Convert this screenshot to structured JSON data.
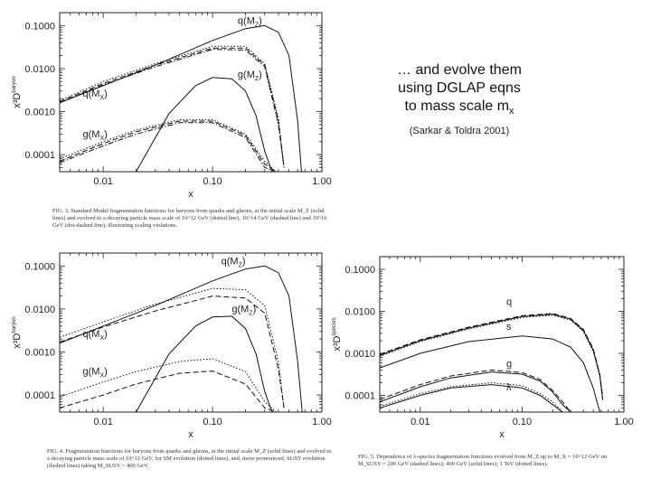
{
  "slide": {
    "lines": [
      "… and evolve them",
      "using DGLAP eqns",
      "to mass scale m"
    ],
    "subscript": "x",
    "reference": "(Sarkar & Toldra 2001)"
  },
  "captions": {
    "fig3": "FIG. 3. Standard Model fragmentation functions for baryons from quarks and gluons, at the initial scale M_Z (solid lines) and evolved to a decaying particle mass scale of 10^12 GeV (dotted line), 10^14 GeV (dashed line) and 10^16 GeV (dot-dashed line), illustrating scaling violations.",
    "fig4": "FIG. 4. Fragmentation functions for baryons from quarks and gluons, at the initial scale M_Z (solid lines) and evolved to a decaying particle mass scale of 10^12 GeV, for SM evolution (dotted lines), and, more pronounced, SUSY evolution (dashed lines) taking M_SUSY ~ 400 GeV.",
    "fig5": "FIG. 5. Dependence of λ-species fragmentation functions evolved from M_Z up to M_X = 10^12 GeV on M_SUSY = 200 GeV (dashed lines); 400 GeV (solid lines); 1 TeV (dotted lines)."
  },
  "chart_data": [
    {
      "type": "line",
      "title": "",
      "xlabel": "x",
      "ylabel": "x³D",
      "ylabel_sup": "baryon",
      "x_scale": "log",
      "y_scale": "log",
      "xlim": [
        0.004,
        1.0
      ],
      "ylim": [
        4e-05,
        0.2
      ],
      "x_ticks": [
        {
          "v": 0.01,
          "label": "0.01"
        },
        {
          "v": 0.1,
          "label": "0.10"
        },
        {
          "v": 1.0,
          "label": "1.00"
        }
      ],
      "y_ticks": [
        {
          "v": 0.1,
          "label": "0.1000"
        },
        {
          "v": 0.01,
          "label": "0.0100"
        },
        {
          "v": 0.001,
          "label": "0.0010"
        },
        {
          "v": 0.0001,
          "label": "0.0001"
        }
      ],
      "annotations": [
        {
          "text": "q(M",
          "sub": "Z",
          "x": 0.17,
          "y": 0.11
        },
        {
          "text": "g(M",
          "sub": "Z",
          "x": 0.17,
          "y": 0.0062
        },
        {
          "text": "q(M",
          "sub": "X",
          "x": 0.0065,
          "y": 0.0022
        },
        {
          "text": "g(M",
          "sub": "X",
          "x": 0.0065,
          "y": 0.00025
        }
      ],
      "series": [
        {
          "style": "solid",
          "x": [
            0.004,
            0.01,
            0.03,
            0.1,
            0.2,
            0.3,
            0.4,
            0.5,
            0.6,
            0.65
          ],
          "y": [
            0.0016,
            0.004,
            0.012,
            0.045,
            0.085,
            0.1,
            0.07,
            0.02,
            0.0006,
            4e-05
          ]
        },
        {
          "style": "solid",
          "x": [
            0.02,
            0.04,
            0.07,
            0.1,
            0.15,
            0.2,
            0.25,
            0.3,
            0.35
          ],
          "y": [
            4e-05,
            0.0009,
            0.004,
            0.0062,
            0.0058,
            0.003,
            0.0008,
            0.00012,
            4e-05
          ]
        },
        {
          "style": "dashed",
          "x": [
            0.004,
            0.01,
            0.03,
            0.1,
            0.2,
            0.3,
            0.4,
            0.45
          ],
          "y": [
            0.0017,
            0.0045,
            0.012,
            0.03,
            0.03,
            0.012,
            0.0006,
            5e-05
          ]
        },
        {
          "style": "dotted",
          "x": [
            0.004,
            0.01,
            0.03,
            0.1,
            0.2,
            0.3,
            0.4,
            0.45
          ],
          "y": [
            0.0018,
            0.005,
            0.013,
            0.033,
            0.033,
            0.013,
            0.0007,
            5e-05
          ]
        },
        {
          "style": "dashdot",
          "x": [
            0.004,
            0.01,
            0.03,
            0.1,
            0.2,
            0.3,
            0.4,
            0.45
          ],
          "y": [
            0.0016,
            0.0042,
            0.011,
            0.028,
            0.027,
            0.011,
            0.0005,
            5e-05
          ]
        },
        {
          "style": "dashed",
          "x": [
            0.004,
            0.01,
            0.02,
            0.05,
            0.1,
            0.2,
            0.3,
            0.38
          ],
          "y": [
            7e-05,
            0.00018,
            0.00034,
            0.0006,
            0.0006,
            0.00028,
            6e-05,
            4e-05
          ]
        },
        {
          "style": "dotted",
          "x": [
            0.004,
            0.01,
            0.02,
            0.05,
            0.1,
            0.2,
            0.3,
            0.38
          ],
          "y": [
            8e-05,
            0.0002,
            0.00037,
            0.00065,
            0.00065,
            0.0003,
            7e-05,
            4e-05
          ]
        },
        {
          "style": "dashdot",
          "x": [
            0.004,
            0.01,
            0.02,
            0.05,
            0.1,
            0.2,
            0.3,
            0.38
          ],
          "y": [
            6.5e-05,
            0.00016,
            0.0003,
            0.00055,
            0.00055,
            0.00025,
            5e-05,
            4e-05
          ]
        }
      ]
    },
    {
      "type": "line",
      "title": "",
      "xlabel": "x",
      "ylabel": "x³D",
      "ylabel_sup": "baryon",
      "x_scale": "log",
      "y_scale": "log",
      "xlim": [
        0.004,
        1.0
      ],
      "ylim": [
        4e-05,
        0.2
      ],
      "x_ticks": [
        {
          "v": 0.01,
          "label": "0.01"
        },
        {
          "v": 0.1,
          "label": "0.10"
        },
        {
          "v": 1.0,
          "label": "1.00"
        }
      ],
      "y_ticks": [
        {
          "v": 0.1,
          "label": "0.1000"
        },
        {
          "v": 0.01,
          "label": "0.0100"
        },
        {
          "v": 0.001,
          "label": "0.0010"
        },
        {
          "v": 0.0001,
          "label": "0.0001"
        }
      ],
      "annotations": [
        {
          "text": "q(M",
          "sub": "Z",
          "x": 0.12,
          "y": 0.11
        },
        {
          "text": "g(M",
          "sub": "Z",
          "x": 0.15,
          "y": 0.0085
        },
        {
          "text": "q(M",
          "sub": "X",
          "x": 0.0065,
          "y": 0.0022
        },
        {
          "text": "g(M",
          "sub": "X",
          "x": 0.0065,
          "y": 0.0003
        }
      ],
      "series": [
        {
          "style": "solid",
          "x": [
            0.004,
            0.01,
            0.03,
            0.1,
            0.2,
            0.3,
            0.4,
            0.5,
            0.6,
            0.66
          ],
          "y": [
            0.0016,
            0.004,
            0.012,
            0.045,
            0.085,
            0.1,
            0.07,
            0.02,
            0.0006,
            4e-05
          ]
        },
        {
          "style": "solid",
          "x": [
            0.02,
            0.04,
            0.07,
            0.1,
            0.15,
            0.2,
            0.25,
            0.3,
            0.35
          ],
          "y": [
            4e-05,
            0.0009,
            0.004,
            0.0065,
            0.0068,
            0.0035,
            0.0009,
            0.00012,
            4e-05
          ]
        },
        {
          "style": "dotted",
          "x": [
            0.004,
            0.01,
            0.03,
            0.1,
            0.2,
            0.3,
            0.4,
            0.45
          ],
          "y": [
            0.0022,
            0.005,
            0.013,
            0.03,
            0.028,
            0.012,
            0.0006,
            5e-05
          ]
        },
        {
          "style": "dashed",
          "x": [
            0.004,
            0.01,
            0.03,
            0.1,
            0.2,
            0.3,
            0.4,
            0.45
          ],
          "y": [
            0.0017,
            0.0038,
            0.009,
            0.02,
            0.018,
            0.008,
            0.0004,
            5e-05
          ]
        },
        {
          "style": "dotted",
          "x": [
            0.004,
            0.01,
            0.02,
            0.05,
            0.1,
            0.2,
            0.3,
            0.38
          ],
          "y": [
            9e-05,
            0.0002,
            0.00035,
            0.0006,
            0.0007,
            0.00035,
            7e-05,
            4e-05
          ]
        },
        {
          "style": "dashed",
          "x": [
            0.004,
            0.01,
            0.02,
            0.05,
            0.1,
            0.2,
            0.3,
            0.38
          ],
          "y": [
            5e-05,
            0.0001,
            0.00018,
            0.00032,
            0.00036,
            0.00018,
            5e-05,
            4e-05
          ]
        }
      ]
    },
    {
      "type": "line",
      "title": "",
      "xlabel": "x",
      "ylabel": "x³D",
      "ylabel_sup": "species",
      "x_scale": "log",
      "y_scale": "log",
      "xlim": [
        0.004,
        1.0
      ],
      "ylim": [
        4e-05,
        0.2
      ],
      "x_ticks": [
        {
          "v": 0.01,
          "label": "0.01"
        },
        {
          "v": 0.1,
          "label": "0.10"
        },
        {
          "v": 1.0,
          "label": "1.00"
        }
      ],
      "y_ticks": [
        {
          "v": 0.1,
          "label": "0.1000"
        },
        {
          "v": 0.01,
          "label": "0.0100"
        },
        {
          "v": 0.001,
          "label": "0.0010"
        },
        {
          "v": 0.0001,
          "label": "0.0001"
        }
      ],
      "annotations": [
        {
          "text": "q",
          "sub": "",
          "x": 0.07,
          "y": 0.014
        },
        {
          "text": "s",
          "sub": "",
          "x": 0.07,
          "y": 0.0036
        },
        {
          "text": "g",
          "sub": "",
          "x": 0.07,
          "y": 0.00048
        },
        {
          "text": "λ",
          "sub": "",
          "x": 0.07,
          "y": 0.00013
        }
      ],
      "series": [
        {
          "style": "solid",
          "x": [
            0.004,
            0.01,
            0.03,
            0.1,
            0.2,
            0.3,
            0.4,
            0.5,
            0.58,
            0.62
          ],
          "y": [
            0.0009,
            0.002,
            0.004,
            0.0075,
            0.0085,
            0.0065,
            0.0035,
            0.0012,
            0.0003,
            8e-05
          ]
        },
        {
          "style": "dashed",
          "x": [
            0.004,
            0.01,
            0.03,
            0.1,
            0.2,
            0.3,
            0.4,
            0.5,
            0.58,
            0.62
          ],
          "y": [
            0.00095,
            0.0021,
            0.0042,
            0.0079,
            0.0089,
            0.0068,
            0.0037,
            0.0013,
            0.00032,
            9e-05
          ]
        },
        {
          "style": "dotted",
          "x": [
            0.004,
            0.01,
            0.03,
            0.1,
            0.2,
            0.3,
            0.4,
            0.5,
            0.58,
            0.62
          ],
          "y": [
            0.00085,
            0.0019,
            0.0038,
            0.0071,
            0.0081,
            0.0062,
            0.0033,
            0.0011,
            0.00028,
            7e-05
          ]
        },
        {
          "style": "solid",
          "x": [
            0.004,
            0.01,
            0.03,
            0.1,
            0.2,
            0.3,
            0.4,
            0.5,
            0.58
          ],
          "y": [
            0.00045,
            0.001,
            0.0019,
            0.0026,
            0.0022,
            0.0014,
            0.0006,
            0.00015,
            4e-05
          ]
        },
        {
          "style": "solid",
          "x": [
            0.004,
            0.01,
            0.02,
            0.05,
            0.1,
            0.15,
            0.2,
            0.25,
            0.3
          ],
          "y": [
            7e-05,
            0.00016,
            0.00026,
            0.00036,
            0.00032,
            0.00022,
            0.00012,
            6e-05,
            4e-05
          ]
        },
        {
          "style": "dashed",
          "x": [
            0.004,
            0.01,
            0.02,
            0.05,
            0.1,
            0.15,
            0.2,
            0.25,
            0.3
          ],
          "y": [
            8e-05,
            0.00018,
            0.00029,
            0.0004,
            0.00035,
            0.00024,
            0.00013,
            7e-05,
            4e-05
          ]
        },
        {
          "style": "solid",
          "x": [
            0.004,
            0.01,
            0.02,
            0.05,
            0.1,
            0.15,
            0.2,
            0.25
          ],
          "y": [
            5e-05,
            0.0001,
            0.00015,
            0.00018,
            0.00015,
            0.0001,
            6e-05,
            4e-05
          ]
        },
        {
          "style": "dotted",
          "x": [
            0.004,
            0.01,
            0.02,
            0.05,
            0.1,
            0.15,
            0.2,
            0.25
          ],
          "y": [
            5.5e-05,
            0.00011,
            0.00016,
            0.0002,
            0.00017,
            0.00011,
            7e-05,
            4e-05
          ]
        }
      ]
    }
  ]
}
